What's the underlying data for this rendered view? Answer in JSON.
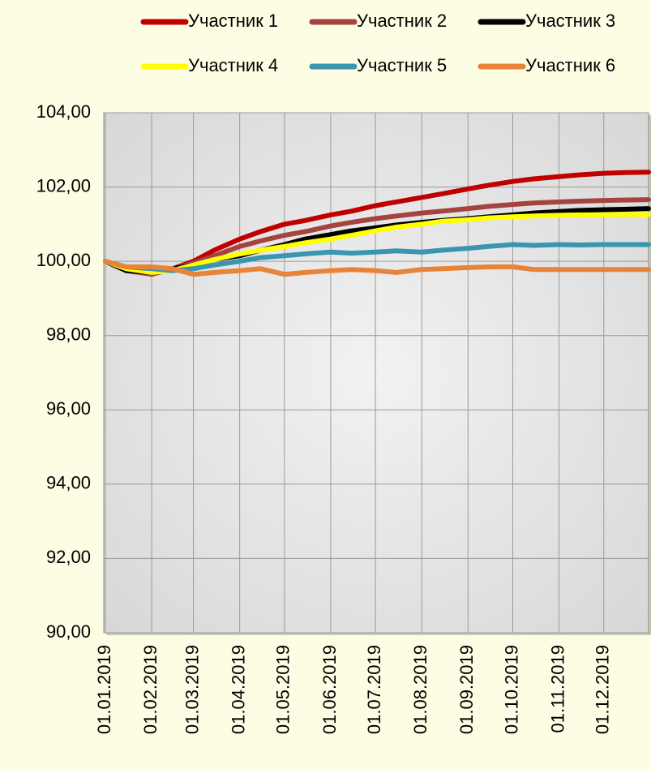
{
  "chart_data": {
    "type": "line",
    "x": [
      "01.01.2019",
      "15.01.2019",
      "01.02.2019",
      "15.02.2019",
      "01.03.2019",
      "15.03.2019",
      "01.04.2019",
      "15.04.2019",
      "01.05.2019",
      "15.05.2019",
      "01.06.2019",
      "15.06.2019",
      "01.07.2019",
      "15.07.2019",
      "01.08.2019",
      "15.08.2019",
      "01.09.2019",
      "15.09.2019",
      "01.10.2019",
      "15.10.2019",
      "01.11.2019",
      "15.11.2019",
      "01.12.2019",
      "15.12.2019",
      "31.12.2019"
    ],
    "series": [
      {
        "name": "Участник 1",
        "color": "#c00000",
        "values": [
          100,
          99.8,
          99.7,
          99.8,
          100.0,
          100.3,
          100.6,
          100.8,
          101.0,
          101.1,
          101.25,
          101.35,
          101.5,
          101.6,
          101.72,
          101.82,
          101.95,
          102.05,
          102.15,
          102.22,
          102.28,
          102.33,
          102.37,
          102.39,
          102.4
        ]
      },
      {
        "name": "Участник 2",
        "color": "#a5433e",
        "values": [
          100,
          99.75,
          99.65,
          99.8,
          99.95,
          100.15,
          100.4,
          100.55,
          100.7,
          100.8,
          100.95,
          101.05,
          101.15,
          101.22,
          101.3,
          101.35,
          101.42,
          101.48,
          101.53,
          101.57,
          101.6,
          101.62,
          101.64,
          101.65,
          101.66
        ]
      },
      {
        "name": "Участник 3",
        "color": "#000000",
        "values": [
          100,
          99.75,
          99.7,
          99.8,
          99.9,
          100.05,
          100.15,
          100.3,
          100.45,
          100.6,
          100.72,
          100.82,
          100.9,
          100.98,
          101.05,
          101.1,
          101.15,
          101.2,
          101.25,
          101.3,
          101.34,
          101.37,
          101.39,
          101.4,
          101.42
        ]
      },
      {
        "name": "Участник 4",
        "color": "#ffff00",
        "values": [
          100,
          99.8,
          99.7,
          99.75,
          99.9,
          100.05,
          100.2,
          100.3,
          100.4,
          100.5,
          100.6,
          100.7,
          100.82,
          100.92,
          101.0,
          101.08,
          101.12,
          101.17,
          101.2,
          101.22,
          101.24,
          101.25,
          101.25,
          101.26,
          101.26
        ]
      },
      {
        "name": "Участник 5",
        "color": "#3a96b0",
        "values": [
          100,
          99.85,
          99.8,
          99.75,
          99.8,
          99.9,
          100.0,
          100.1,
          100.15,
          100.2,
          100.25,
          100.22,
          100.25,
          100.28,
          100.25,
          100.3,
          100.35,
          100.4,
          100.45,
          100.43,
          100.45,
          100.44,
          100.45,
          100.45,
          100.45
        ]
      },
      {
        "name": "Участник 6",
        "color": "#e8843a",
        "values": [
          100,
          99.85,
          99.85,
          99.8,
          99.65,
          99.7,
          99.75,
          99.8,
          99.65,
          99.7,
          99.75,
          99.78,
          99.75,
          99.7,
          99.78,
          99.8,
          99.83,
          99.85,
          99.85,
          99.78,
          99.78,
          99.78,
          99.78,
          99.78,
          99.78
        ]
      }
    ],
    "xlim": [
      "01.01.2019",
      "31.12.2019"
    ],
    "xticks": [
      "01.01.2019",
      "01.02.2019",
      "01.03.2019",
      "01.04.2019",
      "01.05.2019",
      "01.06.2019",
      "01.07.2019",
      "01.08.2019",
      "01.09.2019",
      "01.10.2019",
      "01.11.2019",
      "01.12.2019"
    ],
    "ylim": [
      90,
      104
    ],
    "yticks": [
      {
        "value": 90,
        "label": "90,00"
      },
      {
        "value": 92,
        "label": "92,00"
      },
      {
        "value": 94,
        "label": "94,00"
      },
      {
        "value": 96,
        "label": "96,00"
      },
      {
        "value": 98,
        "label": "98,00"
      },
      {
        "value": 100,
        "label": "100,00"
      },
      {
        "value": 102,
        "label": "102,00"
      },
      {
        "value": 104,
        "label": "104,00"
      }
    ],
    "grid": true,
    "legend": "top"
  }
}
